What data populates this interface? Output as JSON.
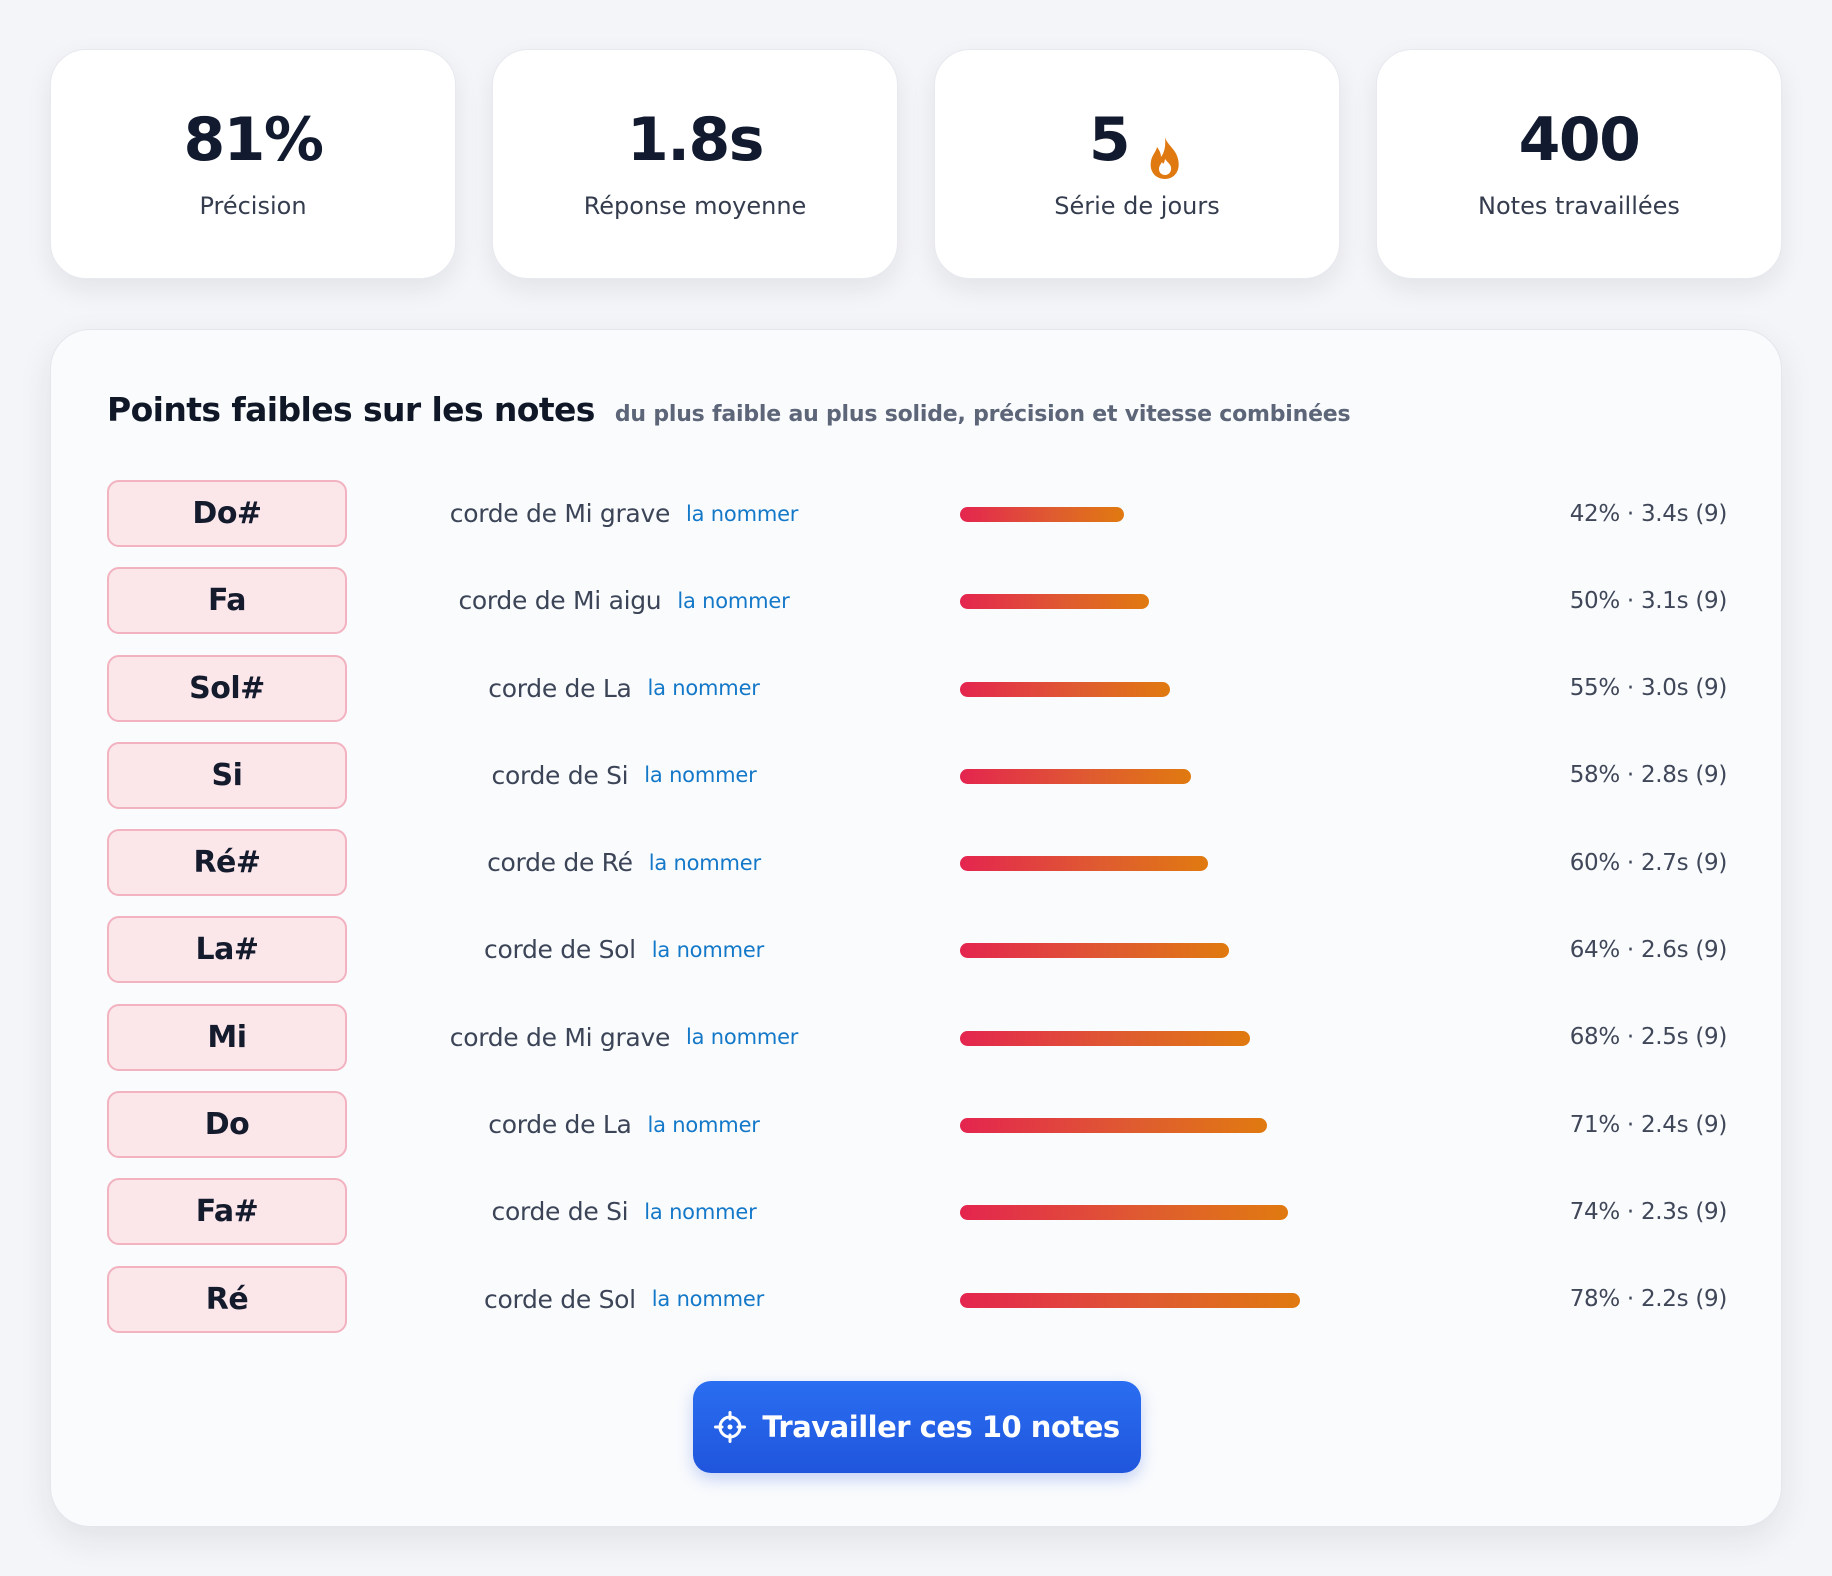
{
  "stats": [
    {
      "value": "81%",
      "label": "Précision"
    },
    {
      "value": "1.8s",
      "label": "Réponse moyenne"
    },
    {
      "value": "5",
      "label": "Série de jours",
      "icon": "flame-icon"
    },
    {
      "value": "400",
      "label": "Notes travaillées"
    }
  ],
  "panel": {
    "title": "Points faibles sur les notes",
    "subtitle": "du plus faible au plus solide, précision et vitesse combinées"
  },
  "link_label": "la nommer",
  "rows": [
    {
      "note": "Do#",
      "string": "corde de Mi grave",
      "link": "la nommer",
      "stat": "42% · 3.4s (9)",
      "score": 0.39
    },
    {
      "note": "Fa",
      "string": "corde de Mi aigu",
      "link": "la nommer",
      "stat": "50% · 3.1s (9)",
      "score": 0.45
    },
    {
      "note": "Sol#",
      "string": "corde de La",
      "link": "la nommer",
      "stat": "55% · 3.0s (9)",
      "score": 0.5
    },
    {
      "note": "Si",
      "string": "corde de Si",
      "link": "la nommer",
      "stat": "58% · 2.8s (9)",
      "score": 0.55
    },
    {
      "note": "Ré#",
      "string": "corde de Ré",
      "link": "la nommer",
      "stat": "60% · 2.7s (9)",
      "score": 0.59
    },
    {
      "note": "La#",
      "string": "corde de Sol",
      "link": "la nommer",
      "stat": "64% · 2.6s (9)",
      "score": 0.64
    },
    {
      "note": "Mi",
      "string": "corde de Mi grave",
      "link": "la nommer",
      "stat": "68% · 2.5s (9)",
      "score": 0.69
    },
    {
      "note": "Do",
      "string": "corde de La",
      "link": "la nommer",
      "stat": "71% · 2.4s (9)",
      "score": 0.73
    },
    {
      "note": "Fa#",
      "string": "corde de Si",
      "link": "la nommer",
      "stat": "74% · 2.3s (9)",
      "score": 0.78
    },
    {
      "note": "Ré",
      "string": "corde de Sol",
      "link": "la nommer",
      "stat": "78% · 2.2s (9)",
      "score": 0.81
    }
  ],
  "cta": {
    "label": "Travailler ces 10 notes",
    "icon": "target-icon"
  },
  "colors": {
    "accent": "#1f55dc",
    "bar_start": "#e4254f",
    "bar_end": "#e07a10",
    "chip_bg": "#fbe6ea",
    "chip_border": "#f2b2bf",
    "link": "#1478c9",
    "flame": "#e07a10"
  }
}
